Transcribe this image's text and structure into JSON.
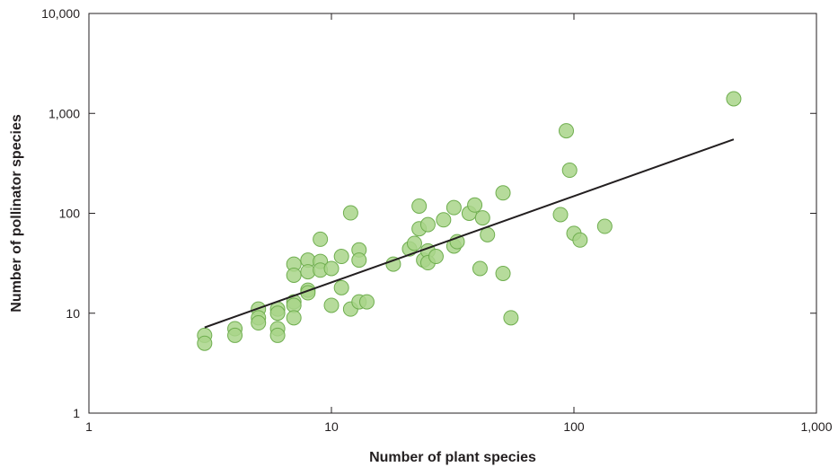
{
  "chart_data": {
    "type": "scatter",
    "title": "",
    "xlabel": "Number of plant species",
    "ylabel": "Number of pollinator species",
    "x_scale": "log",
    "y_scale": "log",
    "xlim": [
      1,
      1000
    ],
    "ylim": [
      1,
      10000
    ],
    "x_ticks": [
      1,
      10,
      100,
      1000
    ],
    "x_tick_labels": [
      "1",
      "10",
      "100",
      "1,000"
    ],
    "y_ticks": [
      1,
      10,
      100,
      1000,
      10000
    ],
    "y_tick_labels": [
      "1",
      "10",
      "100",
      "1,000",
      "10,000"
    ],
    "grid": false,
    "colors": {
      "point_fill": "#a9d58a",
      "point_stroke": "#6fae4f",
      "line": "#231f20",
      "axis": "#231f20"
    },
    "points": [
      {
        "x": 3,
        "y": 6
      },
      {
        "x": 3,
        "y": 5
      },
      {
        "x": 4,
        "y": 7
      },
      {
        "x": 4,
        "y": 6
      },
      {
        "x": 5,
        "y": 11
      },
      {
        "x": 5,
        "y": 9
      },
      {
        "x": 5,
        "y": 8
      },
      {
        "x": 6,
        "y": 11
      },
      {
        "x": 6,
        "y": 10
      },
      {
        "x": 6,
        "y": 7
      },
      {
        "x": 6,
        "y": 6
      },
      {
        "x": 7,
        "y": 31
      },
      {
        "x": 7,
        "y": 24
      },
      {
        "x": 7,
        "y": 13
      },
      {
        "x": 7,
        "y": 12
      },
      {
        "x": 7,
        "y": 9
      },
      {
        "x": 8,
        "y": 34
      },
      {
        "x": 8,
        "y": 26
      },
      {
        "x": 8,
        "y": 17
      },
      {
        "x": 8,
        "y": 16
      },
      {
        "x": 9,
        "y": 55
      },
      {
        "x": 9,
        "y": 33
      },
      {
        "x": 9,
        "y": 27
      },
      {
        "x": 10,
        "y": 28
      },
      {
        "x": 10,
        "y": 12
      },
      {
        "x": 11,
        "y": 37
      },
      {
        "x": 11,
        "y": 18
      },
      {
        "x": 12,
        "y": 101
      },
      {
        "x": 12,
        "y": 11
      },
      {
        "x": 13,
        "y": 43
      },
      {
        "x": 13,
        "y": 34
      },
      {
        "x": 13,
        "y": 13
      },
      {
        "x": 14,
        "y": 13
      },
      {
        "x": 18,
        "y": 31
      },
      {
        "x": 21,
        "y": 44
      },
      {
        "x": 22,
        "y": 50
      },
      {
        "x": 23,
        "y": 118
      },
      {
        "x": 23,
        "y": 70
      },
      {
        "x": 24,
        "y": 34
      },
      {
        "x": 25,
        "y": 77
      },
      {
        "x": 25,
        "y": 42
      },
      {
        "x": 25,
        "y": 32
      },
      {
        "x": 27,
        "y": 37
      },
      {
        "x": 29,
        "y": 86
      },
      {
        "x": 32,
        "y": 114
      },
      {
        "x": 32,
        "y": 47
      },
      {
        "x": 33,
        "y": 52
      },
      {
        "x": 37,
        "y": 100
      },
      {
        "x": 39,
        "y": 121
      },
      {
        "x": 41,
        "y": 28
      },
      {
        "x": 42,
        "y": 90
      },
      {
        "x": 44,
        "y": 61
      },
      {
        "x": 51,
        "y": 160
      },
      {
        "x": 51,
        "y": 25
      },
      {
        "x": 55,
        "y": 9
      },
      {
        "x": 88,
        "y": 97
      },
      {
        "x": 93,
        "y": 670
      },
      {
        "x": 96,
        "y": 270
      },
      {
        "x": 100,
        "y": 63
      },
      {
        "x": 106,
        "y": 54
      },
      {
        "x": 134,
        "y": 74
      },
      {
        "x": 456,
        "y": 1400
      }
    ],
    "regression_line": {
      "x": [
        3,
        456
      ],
      "y": [
        7.2,
        550
      ]
    }
  }
}
